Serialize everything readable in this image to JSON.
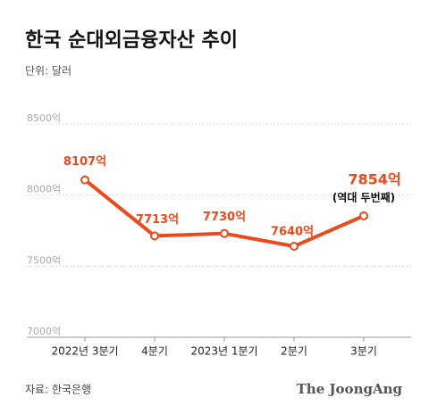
{
  "chart_data": {
    "type": "line",
    "title": "한국 순대외금융자산 추이",
    "subtitle": "단위: 달러",
    "categories": [
      "2022년 3분기",
      "4분기",
      "2023년 1분기",
      "2분기",
      "3분기"
    ],
    "series": [
      {
        "name": "순대외금융자산",
        "color": "#ec4a1c",
        "values": [
          8107,
          7713,
          7730,
          7640,
          7854
        ],
        "value_labels": [
          "8107억",
          "7713억",
          "7730억",
          "7640억",
          "7854억"
        ]
      }
    ],
    "annotation": "(역대 두번째)",
    "ylim": [
      7000,
      8500
    ],
    "yticks": [
      {
        "value": 7000,
        "label": "7000억"
      },
      {
        "value": 7500,
        "label": "7500억"
      },
      {
        "value": 8000,
        "label": "8000억"
      },
      {
        "value": 8500,
        "label": "8500억"
      }
    ],
    "grid": true,
    "source": "자료: 한국은행",
    "brand": "The JoongAng"
  }
}
